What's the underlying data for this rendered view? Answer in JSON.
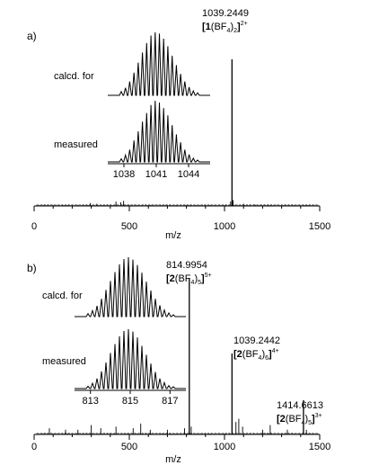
{
  "chart_data": [
    {
      "type": "line",
      "panel_label": "a)",
      "xlabel": "m/z",
      "ylabel": "",
      "xlim": [
        0,
        1500
      ],
      "x_ticks": [
        0,
        500,
        1000,
        1500
      ],
      "peaks": [
        {
          "x": 295,
          "y": 0.02
        },
        {
          "x": 330,
          "y": 0.015
        },
        {
          "x": 430,
          "y": 0.03
        },
        {
          "x": 455,
          "y": 0.025
        },
        {
          "x": 470,
          "y": 0.035
        },
        {
          "x": 1032,
          "y": 0.03
        },
        {
          "x": 1039.2449,
          "y": 1.0
        },
        {
          "x": 1045,
          "y": 0.04
        },
        {
          "x": 1100,
          "y": 0.015
        },
        {
          "x": 1160,
          "y": 0.01
        }
      ],
      "annotations": [
        {
          "x": 1039.2449,
          "value": "1039.2449",
          "ion_bold": "1",
          "ion_pre": "[",
          "ion_mid": "(BF",
          "ion_sub": "4",
          "ion_post": ")",
          "ion_sub2": "2",
          "ion_end": "]",
          "charge": "2+"
        }
      ],
      "insets": [
        {
          "label": "calcd. for",
          "kind": "calculated",
          "profile": [
            0.06,
            0.12,
            0.22,
            0.36,
            0.52,
            0.68,
            0.83,
            0.95,
            1.0,
            0.98,
            0.9,
            0.78,
            0.63,
            0.48,
            0.34,
            0.22,
            0.13,
            0.07,
            0.04
          ]
        },
        {
          "label": "measured",
          "kind": "measured",
          "xlim": [
            1036.5,
            1046
          ],
          "x_ticks": [
            1038,
            1041,
            1044
          ],
          "profile": [
            0.05,
            0.11,
            0.2,
            0.35,
            0.5,
            0.66,
            0.8,
            0.93,
            1.0,
            0.97,
            0.88,
            0.76,
            0.6,
            0.45,
            0.32,
            0.2,
            0.12,
            0.06,
            0.03
          ]
        }
      ]
    },
    {
      "type": "line",
      "panel_label": "b)",
      "xlabel": "m/z",
      "ylabel": "",
      "xlim": [
        0,
        1500
      ],
      "x_ticks": [
        0,
        500,
        1000,
        1500
      ],
      "peaks": [
        {
          "x": 80,
          "y": 0.04
        },
        {
          "x": 165,
          "y": 0.03
        },
        {
          "x": 230,
          "y": 0.03
        },
        {
          "x": 300,
          "y": 0.06
        },
        {
          "x": 350,
          "y": 0.04
        },
        {
          "x": 430,
          "y": 0.05
        },
        {
          "x": 520,
          "y": 0.04
        },
        {
          "x": 560,
          "y": 0.07
        },
        {
          "x": 610,
          "y": 0.03
        },
        {
          "x": 700,
          "y": 0.03
        },
        {
          "x": 790,
          "y": 0.04
        },
        {
          "x": 814.9954,
          "y": 1.0
        },
        {
          "x": 825,
          "y": 0.05
        },
        {
          "x": 1039.2442,
          "y": 0.52
        },
        {
          "x": 1060,
          "y": 0.08
        },
        {
          "x": 1075,
          "y": 0.1
        },
        {
          "x": 1095,
          "y": 0.05
        },
        {
          "x": 1200,
          "y": 0.03
        },
        {
          "x": 1240,
          "y": 0.06
        },
        {
          "x": 1330,
          "y": 0.03
        },
        {
          "x": 1414.6613,
          "y": 0.22
        },
        {
          "x": 1430,
          "y": 0.03
        }
      ],
      "annotations": [
        {
          "x": 814.9954,
          "value": "814.9954",
          "ion_bold": "2",
          "ion_pre": "[",
          "ion_mid": "(BF",
          "ion_sub": "4",
          "ion_post": ")",
          "ion_sub2": "5",
          "ion_end": "]",
          "charge": "5+"
        },
        {
          "x": 1039.2442,
          "value": "1039.2442",
          "ion_bold": "2",
          "ion_pre": "[",
          "ion_mid": "(BF",
          "ion_sub": "4",
          "ion_post": ")",
          "ion_sub2": "6",
          "ion_end": "]",
          "charge": "4+"
        },
        {
          "x": 1414.6613,
          "value": "1414.6613",
          "ion_bold": "2",
          "ion_pre": "[",
          "ion_mid": "(BF",
          "ion_sub": "4",
          "ion_post": ")",
          "ion_sub2": "5",
          "ion_end": "]",
          "charge": "3+"
        }
      ],
      "insets": [
        {
          "label": "calcd. for",
          "kind": "calculated",
          "profile": [
            0.05,
            0.1,
            0.18,
            0.3,
            0.45,
            0.6,
            0.75,
            0.88,
            0.97,
            1.0,
            0.96,
            0.87,
            0.74,
            0.59,
            0.44,
            0.3,
            0.19,
            0.11,
            0.06,
            0.03
          ]
        },
        {
          "label": "measured",
          "kind": "measured",
          "xlim": [
            812.2,
            817.8
          ],
          "x_ticks": [
            813,
            815,
            817
          ],
          "profile": [
            0.04,
            0.09,
            0.17,
            0.29,
            0.44,
            0.6,
            0.75,
            0.88,
            0.97,
            1.0,
            0.96,
            0.86,
            0.72,
            0.57,
            0.42,
            0.28,
            0.17,
            0.1,
            0.05,
            0.03
          ]
        }
      ]
    }
  ]
}
